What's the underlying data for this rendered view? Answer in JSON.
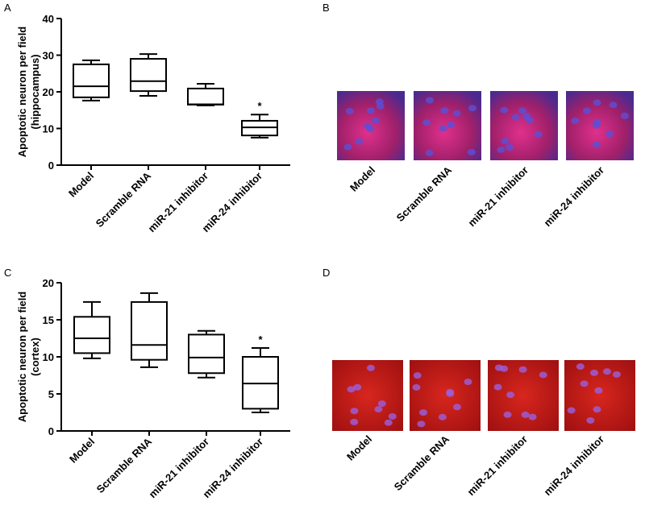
{
  "chart_data": [
    {
      "type": "box",
      "panel": "A",
      "ylabel": [
        "Apoptotic neuron per field",
        "(hippocampus)"
      ],
      "categories": [
        "Model",
        "Scramble RNA",
        "miR-21 inhibitor",
        "miR-24 inhibitor"
      ],
      "boxes": [
        {
          "min": 17.6,
          "q1": 18.5,
          "median": 21.5,
          "q3": 27.5,
          "max": 28.6
        },
        {
          "min": 18.9,
          "q1": 20.2,
          "median": 22.9,
          "q3": 29.0,
          "max": 30.3
        },
        {
          "min": 16.3,
          "q1": 16.5,
          "median": 16.6,
          "q3": 20.9,
          "max": 22.2
        },
        {
          "min": 7.5,
          "q1": 8.1,
          "median": 10.3,
          "q3": 12.1,
          "max": 13.8
        }
      ],
      "annotations": [
        {
          "category": 3,
          "text": "*"
        }
      ],
      "ylim": [
        0,
        40
      ],
      "yticks": [
        0,
        10,
        20,
        30,
        40
      ],
      "color": "#000000"
    },
    {
      "type": "box",
      "panel": "C",
      "ylabel": [
        "Apoptotic neuron per field",
        "(cortex)"
      ],
      "categories": [
        "Model",
        "Scramble RNA",
        "miR-21 inhibitor",
        "miR-24 inhibitor"
      ],
      "boxes": [
        {
          "min": 9.8,
          "q1": 10.5,
          "median": 12.5,
          "q3": 15.4,
          "max": 17.4
        },
        {
          "min": 8.6,
          "q1": 9.6,
          "median": 11.6,
          "q3": 17.4,
          "max": 18.6
        },
        {
          "min": 7.2,
          "q1": 7.8,
          "median": 9.9,
          "q3": 13.0,
          "max": 13.5
        },
        {
          "min": 2.5,
          "q1": 3.0,
          "median": 6.4,
          "q3": 10.0,
          "max": 11.2
        }
      ],
      "annotations": [
        {
          "category": 3,
          "text": "*"
        }
      ],
      "ylim": [
        0,
        20
      ],
      "yticks": [
        0,
        5,
        10,
        15,
        20
      ],
      "color": "#000000"
    }
  ],
  "image_panels": [
    {
      "panel": "B",
      "labels": [
        "Model",
        "Scramble RNA",
        "miR-21 inhibitor",
        "miR-24 inhibitor"
      ]
    },
    {
      "panel": "D",
      "labels": [
        "Model",
        "Scramble RNA",
        "miR-21 inhibitor",
        "miR-24 inhibitor"
      ]
    }
  ]
}
